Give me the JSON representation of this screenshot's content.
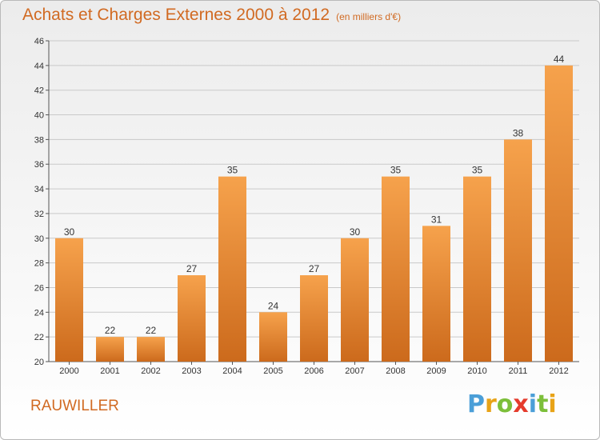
{
  "title": "Achats et Charges Externes 2000 à 2012",
  "subtitle": "(en milliers d'€)",
  "commune": "RAUWILLER",
  "logo": {
    "letters": [
      "P",
      "r",
      "o",
      "x",
      "i",
      "t",
      "i"
    ],
    "colors": [
      "#4b9fd8",
      "#e8a317",
      "#7cbf3a",
      "#e53b2c",
      "#4b9fd8",
      "#7cbf3a",
      "#e8a317"
    ]
  },
  "colors": {
    "bar_light": "#f6a24c",
    "bar_dark": "#cc6a1c",
    "title": "#d16a22",
    "grid": "#c9c9c9"
  },
  "chart_data": {
    "type": "bar",
    "categories": [
      "2000",
      "2001",
      "2002",
      "2003",
      "2004",
      "2005",
      "2006",
      "2007",
      "2008",
      "2009",
      "2010",
      "2011",
      "2012"
    ],
    "values": [
      30,
      22,
      22,
      27,
      35,
      24,
      27,
      30,
      35,
      31,
      35,
      38,
      44
    ],
    "data_labels": [
      "30",
      "22",
      "22",
      "27",
      "35",
      "24",
      "27",
      "30",
      "35",
      "31",
      "35",
      "38",
      "44"
    ],
    "title": "Achats et Charges Externes 2000 à 2012",
    "subtitle": "(en milliers d'€)",
    "xlabel": "",
    "ylabel": "",
    "ylim": [
      20,
      46
    ],
    "yticks": [
      "20",
      "22",
      "24",
      "26",
      "28",
      "30",
      "32",
      "34",
      "36",
      "38",
      "40",
      "42",
      "44",
      "46"
    ],
    "grid": true,
    "legend": "none"
  }
}
